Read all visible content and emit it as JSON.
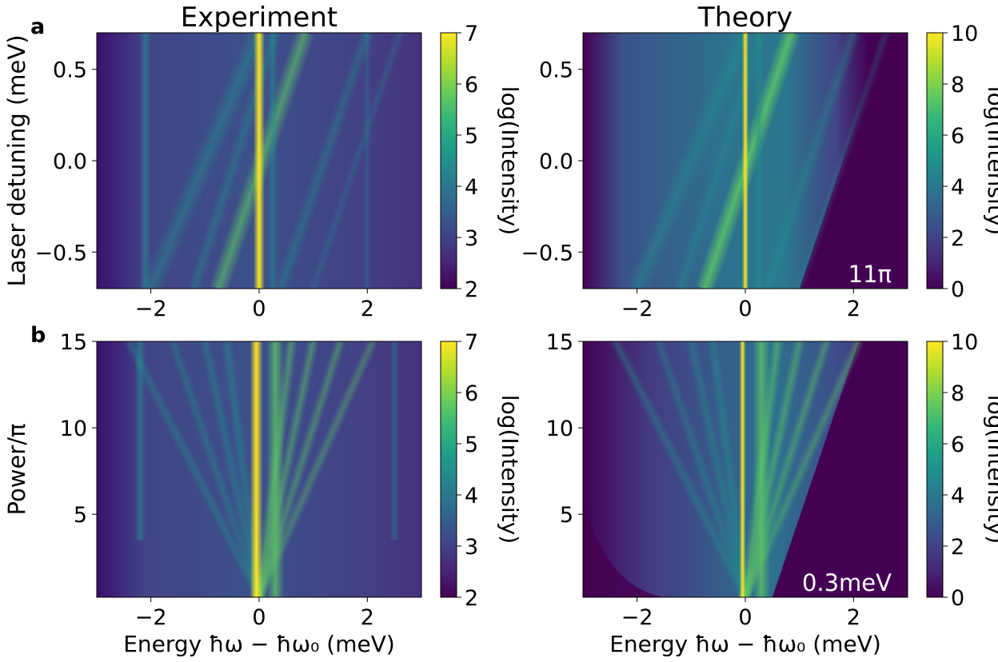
{
  "colormap": [
    "#440154",
    "#482878",
    "#3e4989",
    "#31688e",
    "#26828e",
    "#1f9e89",
    "#35b779",
    "#6ece58",
    "#b5de2b",
    "#fde725"
  ],
  "panel_labels": {
    "a": "a",
    "b": "b"
  },
  "column_titles": {
    "experiment": "Experiment",
    "theory": "Theory"
  },
  "chart_data": [
    {
      "id": "a-experiment",
      "type": "heatmap",
      "title": "Experiment",
      "ylabel": "Laser detuning (meV)",
      "xlabel": "",
      "xlim": [
        -3,
        3
      ],
      "ylim": [
        -0.7,
        0.7
      ],
      "xticks": [
        -2,
        0,
        2
      ],
      "xtick_labels": [
        "−2",
        "0",
        "2"
      ],
      "yticks": [
        -0.5,
        0.0,
        0.5
      ],
      "ytick_labels": [
        "−0.5",
        "0.0",
        "0.5"
      ],
      "colorbar": {
        "label": "log(Intensity)",
        "range": [
          2,
          7
        ],
        "ticks": [
          2,
          3,
          4,
          5,
          6,
          7
        ],
        "tick_labels": [
          "2",
          "3",
          "4",
          "5",
          "6",
          "7"
        ]
      },
      "annotation": ""
    },
    {
      "id": "a-theory",
      "type": "heatmap",
      "title": "Theory",
      "ylabel": "",
      "xlabel": "",
      "xlim": [
        -3,
        3
      ],
      "ylim": [
        -0.7,
        0.7
      ],
      "xticks": [
        -2,
        0,
        2
      ],
      "xtick_labels": [
        "−2",
        "0",
        "2"
      ],
      "yticks": [
        -0.5,
        0.0,
        0.5
      ],
      "ytick_labels": [
        "−0.5",
        "0.0",
        "0.5"
      ],
      "colorbar": {
        "label": "log(Intensity)",
        "range": [
          0,
          10
        ],
        "ticks": [
          0,
          2,
          4,
          6,
          8,
          10
        ],
        "tick_labels": [
          "0",
          "2",
          "4",
          "6",
          "8",
          "10"
        ]
      },
      "annotation": "11π"
    },
    {
      "id": "b-experiment",
      "type": "heatmap",
      "title": "",
      "ylabel": "Power/π",
      "xlabel": "Energy ħω − ħω₀ (meV)",
      "xlim": [
        -3,
        3
      ],
      "ylim": [
        0.2,
        15
      ],
      "xticks": [
        -2,
        0,
        2
      ],
      "xtick_labels": [
        "−2",
        "0",
        "2"
      ],
      "yticks": [
        5,
        10,
        15
      ],
      "ytick_labels": [
        "5",
        "10",
        "15"
      ],
      "colorbar": {
        "label": "log(Intensity)",
        "range": [
          2,
          7
        ],
        "ticks": [
          2,
          3,
          4,
          5,
          6,
          7
        ],
        "tick_labels": [
          "2",
          "3",
          "4",
          "5",
          "6",
          "7"
        ]
      },
      "annotation": ""
    },
    {
      "id": "b-theory",
      "type": "heatmap",
      "title": "",
      "ylabel": "",
      "xlabel": "Energy ħω − ħω₀ (meV)",
      "xlim": [
        -3,
        3
      ],
      "ylim": [
        0.2,
        15
      ],
      "xticks": [
        -2,
        0,
        2
      ],
      "xtick_labels": [
        "−2",
        "0",
        "2"
      ],
      "yticks": [
        5,
        10,
        15
      ],
      "ytick_labels": [
        "5",
        "10",
        "15"
      ],
      "colorbar": {
        "label": "log(Intensity)",
        "range": [
          0,
          10
        ],
        "ticks": [
          0,
          2,
          4,
          6,
          8,
          10
        ],
        "tick_labels": [
          "0",
          "2",
          "4",
          "6",
          "8",
          "10"
        ]
      },
      "annotation": "0.3meV"
    }
  ]
}
